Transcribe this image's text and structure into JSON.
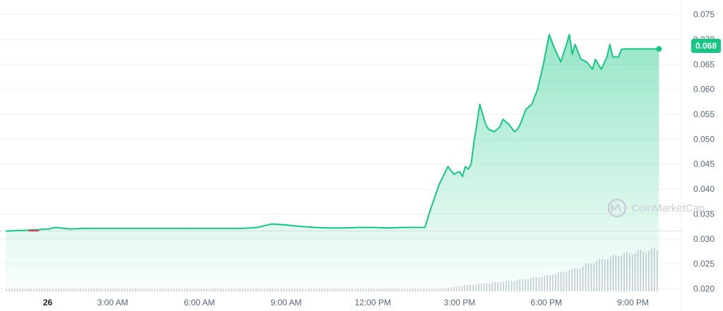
{
  "chart_data": {
    "type": "line",
    "title": "",
    "xlabel": "",
    "ylabel": "",
    "ylim": [
      0.0195,
      0.0765
    ],
    "y_ticks": [
      "0.075",
      "0.070",
      "0.065",
      "0.060",
      "0.055",
      "0.050",
      "0.045",
      "0.040",
      "0.035",
      "0.030",
      "0.025",
      "0.020"
    ],
    "x_ticks": [
      {
        "label": "26",
        "hour": 0.75,
        "bold": true
      },
      {
        "label": "3:00 AM",
        "hour": 3
      },
      {
        "label": "6:00 AM",
        "hour": 6
      },
      {
        "label": "9:00 AM",
        "hour": 9
      },
      {
        "label": "12:00 PM",
        "hour": 12
      },
      {
        "label": "3:00 PM",
        "hour": 15
      },
      {
        "label": "6:00 PM",
        "hour": 18
      },
      {
        "label": "9:00 PM",
        "hour": 21
      }
    ],
    "current_price_label": "0.068",
    "current_price": 0.0681,
    "series": [
      {
        "line_color": "#16c784",
        "down_color": "#ea3943",
        "down_segment_hours": [
          0.08,
          0.45
        ],
        "x_hours": [
          -0.7,
          -0.6,
          -0.5,
          -0.3,
          0,
          0.2,
          0.4,
          0.5,
          0.8,
          1,
          1.5,
          2,
          2.4,
          2.7,
          3,
          3.5,
          4,
          4.5,
          5,
          5.5,
          6,
          6.5,
          7,
          7.5,
          8,
          8.5,
          9,
          9.5,
          10,
          10.5,
          11,
          11.5,
          12,
          12.5,
          13,
          13.5,
          13.8,
          14,
          14.3,
          14.6,
          14.8,
          15,
          15.1,
          15.2,
          15.3,
          15.4,
          15.5,
          15.6,
          15.7,
          15.9,
          16,
          16.2,
          16.3,
          16.4,
          16.5,
          16.7,
          16.9,
          17,
          17.1,
          17.2,
          17.3,
          17.5,
          17.7,
          17.9,
          18.1,
          18.3,
          18.5,
          18.7,
          18.8,
          18.9,
          19,
          19.2,
          19.4,
          19.6,
          19.7,
          19.9,
          20.1,
          20.2,
          20.3,
          20.5,
          20.6,
          20.7,
          20.9,
          21.1,
          21.2,
          21.3,
          21.5,
          21.6,
          21.7,
          21.8,
          21.9
        ],
        "y": [
          0.0316,
          0.0316,
          0.0316,
          0.0317,
          0.0317,
          0.0318,
          0.0318,
          0.0319,
          0.032,
          0.0323,
          0.032,
          0.0321,
          0.0321,
          0.0321,
          0.0321,
          0.0321,
          0.0321,
          0.0321,
          0.0321,
          0.0321,
          0.0321,
          0.0321,
          0.0321,
          0.0321,
          0.0323,
          0.033,
          0.0328,
          0.0325,
          0.0323,
          0.0322,
          0.0322,
          0.0323,
          0.0323,
          0.0322,
          0.0323,
          0.0323,
          0.0323,
          0.036,
          0.041,
          0.0445,
          0.043,
          0.0435,
          0.0425,
          0.0445,
          0.044,
          0.045,
          0.0495,
          0.053,
          0.057,
          0.053,
          0.052,
          0.0515,
          0.052,
          0.0525,
          0.054,
          0.053,
          0.0515,
          0.052,
          0.053,
          0.0545,
          0.056,
          0.057,
          0.06,
          0.065,
          0.071,
          0.068,
          0.0655,
          0.069,
          0.071,
          0.067,
          0.069,
          0.066,
          0.0655,
          0.064,
          0.066,
          0.064,
          0.0665,
          0.069,
          0.0665,
          0.0665,
          0.068,
          0.0681,
          0.0681,
          0.0681,
          0.0681,
          0.0681,
          0.0681,
          0.0681,
          0.0681,
          0.0681,
          0.0681
        ]
      }
    ],
    "volume": {
      "color": "#c6cbd6",
      "base_hours": [
        -0.7,
        14.4
      ],
      "base_level": 0.05,
      "ramp": [
        [
          14.4,
          0.05
        ],
        [
          15,
          0.12
        ],
        [
          17,
          0.25
        ],
        [
          18,
          0.35
        ],
        [
          19,
          0.5
        ],
        [
          19.6,
          0.66
        ],
        [
          20.5,
          0.82
        ],
        [
          21.5,
          0.92
        ],
        [
          21.9,
          0.95
        ]
      ]
    },
    "grid": true,
    "legend": "none",
    "watermark": "CoinMarketCap"
  }
}
